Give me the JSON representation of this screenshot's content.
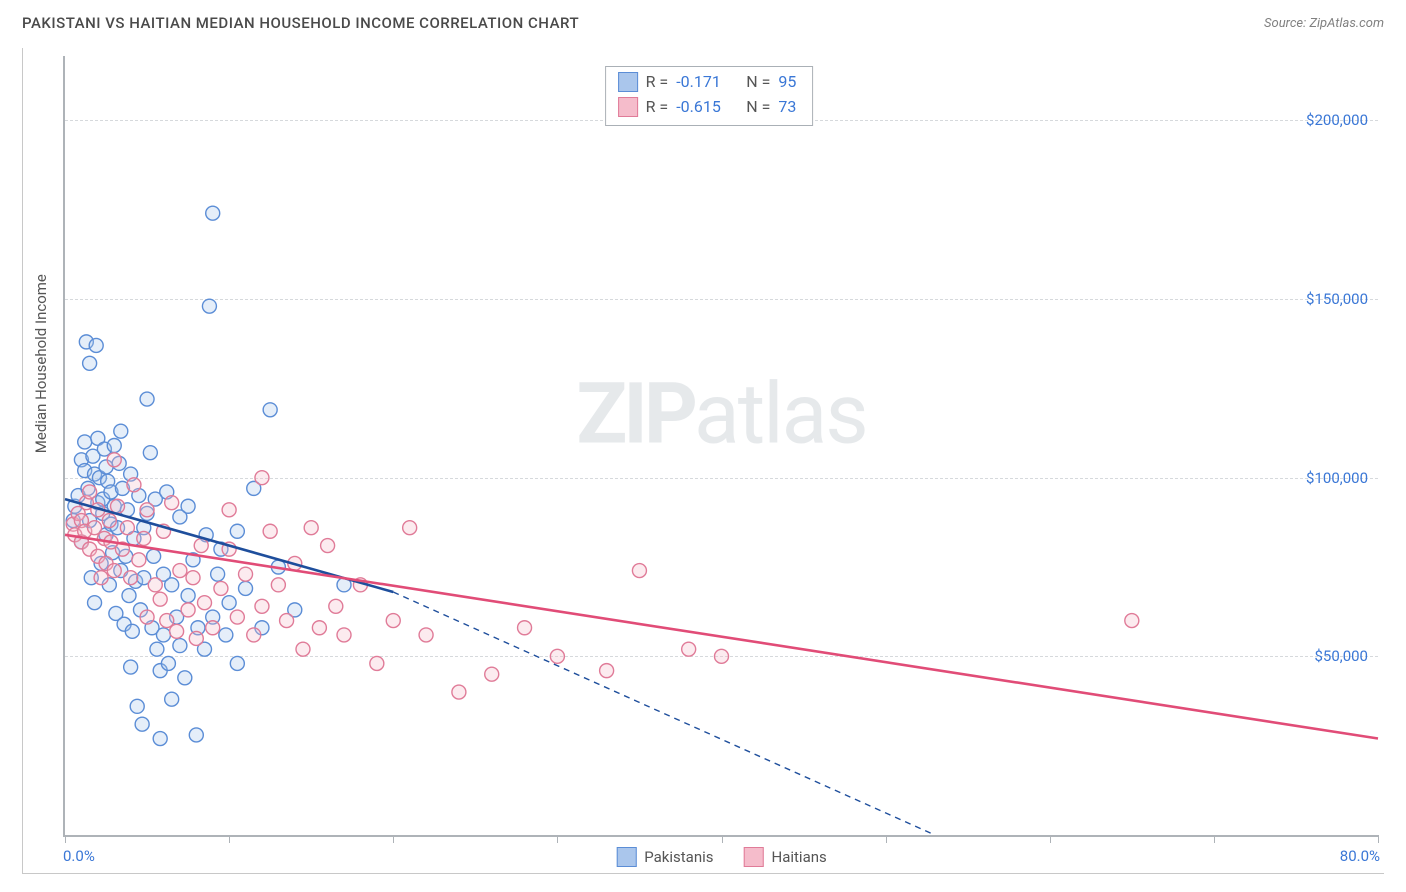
{
  "header": {
    "title": "PAKISTANI VS HAITIAN MEDIAN HOUSEHOLD INCOME CORRELATION CHART",
    "source_prefix": "Source: ",
    "source": "ZipAtlas.com"
  },
  "watermark": {
    "zip": "ZIP",
    "atlas": "atlas"
  },
  "chart": {
    "type": "scatter",
    "background_color": "#ffffff",
    "grid_color": "#d6d9dc",
    "axis_color": "#aeb3b8",
    "text_color": "#555555",
    "tick_label_color": "#3a77d6",
    "y_axis_title": "Median Household Income",
    "xlim": [
      0,
      80
    ],
    "ylim": [
      0,
      218000
    ],
    "x_min_label": "0.0%",
    "x_max_label": "80.0%",
    "x_ticks": [
      0,
      10,
      20,
      30,
      40,
      50,
      60,
      70,
      80
    ],
    "y_ticks": [
      {
        "value": 50000,
        "label": "$50,000"
      },
      {
        "value": 100000,
        "label": "$100,000"
      },
      {
        "value": 150000,
        "label": "$150,000"
      },
      {
        "value": 200000,
        "label": "$200,000"
      }
    ],
    "marker_radius": 7,
    "marker_stroke_width": 1.4,
    "marker_fill_opacity": 0.3,
    "trend_line_width": 2.6,
    "trend_dash_pattern": "6,5",
    "series": [
      {
        "name": "Pakistanis",
        "color_stroke": "#5b8dd6",
        "color_fill": "#aac6ec",
        "trend_color": "#1e4e9c",
        "r_value": "-0.171",
        "n_value": "95",
        "trend_solid": {
          "x1": 0,
          "y1": 94000,
          "x2": 20,
          "y2": 68000
        },
        "trend_dashed": {
          "x1": 20,
          "y1": 68000,
          "x2": 53,
          "y2": 0
        },
        "points": [
          [
            0.5,
            88000
          ],
          [
            0.6,
            92000
          ],
          [
            0.8,
            95000
          ],
          [
            1.0,
            105000
          ],
          [
            1.0,
            82000
          ],
          [
            1.2,
            102000
          ],
          [
            1.2,
            110000
          ],
          [
            1.3,
            138000
          ],
          [
            1.4,
            97000
          ],
          [
            1.5,
            132000
          ],
          [
            1.5,
            88000
          ],
          [
            1.6,
            72000
          ],
          [
            1.7,
            106000
          ],
          [
            1.8,
            101000
          ],
          [
            1.8,
            65000
          ],
          [
            1.9,
            137000
          ],
          [
            2.0,
            93000
          ],
          [
            2.0,
            111000
          ],
          [
            2.1,
            100000
          ],
          [
            2.2,
            76000
          ],
          [
            2.3,
            94000
          ],
          [
            2.3,
            90000
          ],
          [
            2.4,
            108000
          ],
          [
            2.5,
            103000
          ],
          [
            2.5,
            84000
          ],
          [
            2.6,
            99000
          ],
          [
            2.7,
            70000
          ],
          [
            2.8,
            96000
          ],
          [
            2.8,
            87000
          ],
          [
            2.9,
            79000
          ],
          [
            3.0,
            109000
          ],
          [
            3.0,
            92000
          ],
          [
            3.1,
            62000
          ],
          [
            3.2,
            86000
          ],
          [
            3.3,
            104000
          ],
          [
            3.4,
            113000
          ],
          [
            3.4,
            74000
          ],
          [
            3.5,
            97000
          ],
          [
            3.6,
            59000
          ],
          [
            3.7,
            78000
          ],
          [
            3.8,
            91000
          ],
          [
            3.9,
            67000
          ],
          [
            4.0,
            101000
          ],
          [
            4.0,
            47000
          ],
          [
            4.1,
            57000
          ],
          [
            4.2,
            83000
          ],
          [
            4.3,
            71000
          ],
          [
            4.4,
            36000
          ],
          [
            4.5,
            95000
          ],
          [
            4.6,
            63000
          ],
          [
            4.7,
            31000
          ],
          [
            4.8,
            72000
          ],
          [
            4.8,
            86000
          ],
          [
            5.0,
            122000
          ],
          [
            5.0,
            90000
          ],
          [
            5.2,
            107000
          ],
          [
            5.3,
            58000
          ],
          [
            5.4,
            78000
          ],
          [
            5.5,
            94000
          ],
          [
            5.6,
            52000
          ],
          [
            5.8,
            46000
          ],
          [
            5.8,
            27000
          ],
          [
            6.0,
            73000
          ],
          [
            6.0,
            56000
          ],
          [
            6.2,
            96000
          ],
          [
            6.3,
            48000
          ],
          [
            6.5,
            38000
          ],
          [
            6.5,
            70000
          ],
          [
            6.8,
            61000
          ],
          [
            7.0,
            53000
          ],
          [
            7.0,
            89000
          ],
          [
            7.3,
            44000
          ],
          [
            7.5,
            92000
          ],
          [
            7.5,
            67000
          ],
          [
            7.8,
            77000
          ],
          [
            8.0,
            28000
          ],
          [
            8.1,
            58000
          ],
          [
            8.5,
            52000
          ],
          [
            8.6,
            84000
          ],
          [
            8.8,
            148000
          ],
          [
            9.0,
            61000
          ],
          [
            9.0,
            174000
          ],
          [
            9.3,
            73000
          ],
          [
            9.5,
            80000
          ],
          [
            9.8,
            56000
          ],
          [
            10.0,
            65000
          ],
          [
            10.5,
            48000
          ],
          [
            10.5,
            85000
          ],
          [
            11.0,
            69000
          ],
          [
            11.5,
            97000
          ],
          [
            12.0,
            58000
          ],
          [
            12.5,
            119000
          ],
          [
            13.0,
            75000
          ],
          [
            14.0,
            63000
          ],
          [
            17.0,
            70000
          ]
        ]
      },
      {
        "name": "Haitians",
        "color_stroke": "#e07b98",
        "color_fill": "#f5bccb",
        "trend_color": "#e14c77",
        "r_value": "-0.615",
        "n_value": "73",
        "trend_solid": {
          "x1": 0,
          "y1": 84000,
          "x2": 80,
          "y2": 27000
        },
        "trend_dashed": null,
        "points": [
          [
            0.5,
            87000
          ],
          [
            0.6,
            84000
          ],
          [
            0.8,
            90000
          ],
          [
            1.0,
            88000
          ],
          [
            1.0,
            82000
          ],
          [
            1.2,
            85000
          ],
          [
            1.3,
            93000
          ],
          [
            1.5,
            80000
          ],
          [
            1.5,
            96000
          ],
          [
            1.8,
            86000
          ],
          [
            2.0,
            78000
          ],
          [
            2.0,
            91000
          ],
          [
            2.2,
            72000
          ],
          [
            2.4,
            83000
          ],
          [
            2.5,
            76000
          ],
          [
            2.7,
            88000
          ],
          [
            2.8,
            82000
          ],
          [
            3.0,
            105000
          ],
          [
            3.0,
            74000
          ],
          [
            3.2,
            92000
          ],
          [
            3.5,
            80000
          ],
          [
            3.8,
            86000
          ],
          [
            4.0,
            72000
          ],
          [
            4.2,
            98000
          ],
          [
            4.5,
            77000
          ],
          [
            4.8,
            83000
          ],
          [
            5.0,
            61000
          ],
          [
            5.0,
            91000
          ],
          [
            5.5,
            70000
          ],
          [
            5.8,
            66000
          ],
          [
            6.0,
            85000
          ],
          [
            6.2,
            60000
          ],
          [
            6.5,
            93000
          ],
          [
            6.8,
            57000
          ],
          [
            7.0,
            74000
          ],
          [
            7.5,
            63000
          ],
          [
            7.8,
            72000
          ],
          [
            8.0,
            55000
          ],
          [
            8.3,
            81000
          ],
          [
            8.5,
            65000
          ],
          [
            9.0,
            58000
          ],
          [
            9.5,
            69000
          ],
          [
            10.0,
            91000
          ],
          [
            10.0,
            80000
          ],
          [
            10.5,
            61000
          ],
          [
            11.0,
            73000
          ],
          [
            11.5,
            56000
          ],
          [
            12.0,
            64000
          ],
          [
            12.0,
            100000
          ],
          [
            12.5,
            85000
          ],
          [
            13.0,
            70000
          ],
          [
            13.5,
            60000
          ],
          [
            14.0,
            76000
          ],
          [
            14.5,
            52000
          ],
          [
            15.0,
            86000
          ],
          [
            15.5,
            58000
          ],
          [
            16.0,
            81000
          ],
          [
            16.5,
            64000
          ],
          [
            17.0,
            56000
          ],
          [
            18.0,
            70000
          ],
          [
            19.0,
            48000
          ],
          [
            20.0,
            60000
          ],
          [
            21.0,
            86000
          ],
          [
            22.0,
            56000
          ],
          [
            24.0,
            40000
          ],
          [
            26.0,
            45000
          ],
          [
            28.0,
            58000
          ],
          [
            30.0,
            50000
          ],
          [
            33.0,
            46000
          ],
          [
            35.0,
            74000
          ],
          [
            38.0,
            52000
          ],
          [
            40.0,
            50000
          ],
          [
            65.0,
            60000
          ]
        ]
      }
    ]
  },
  "legend_top": {
    "r_label": "R  =",
    "n_label": "N  ="
  },
  "legend_bottom": {
    "series_1_label": "Pakistanis",
    "series_2_label": "Haitians"
  }
}
